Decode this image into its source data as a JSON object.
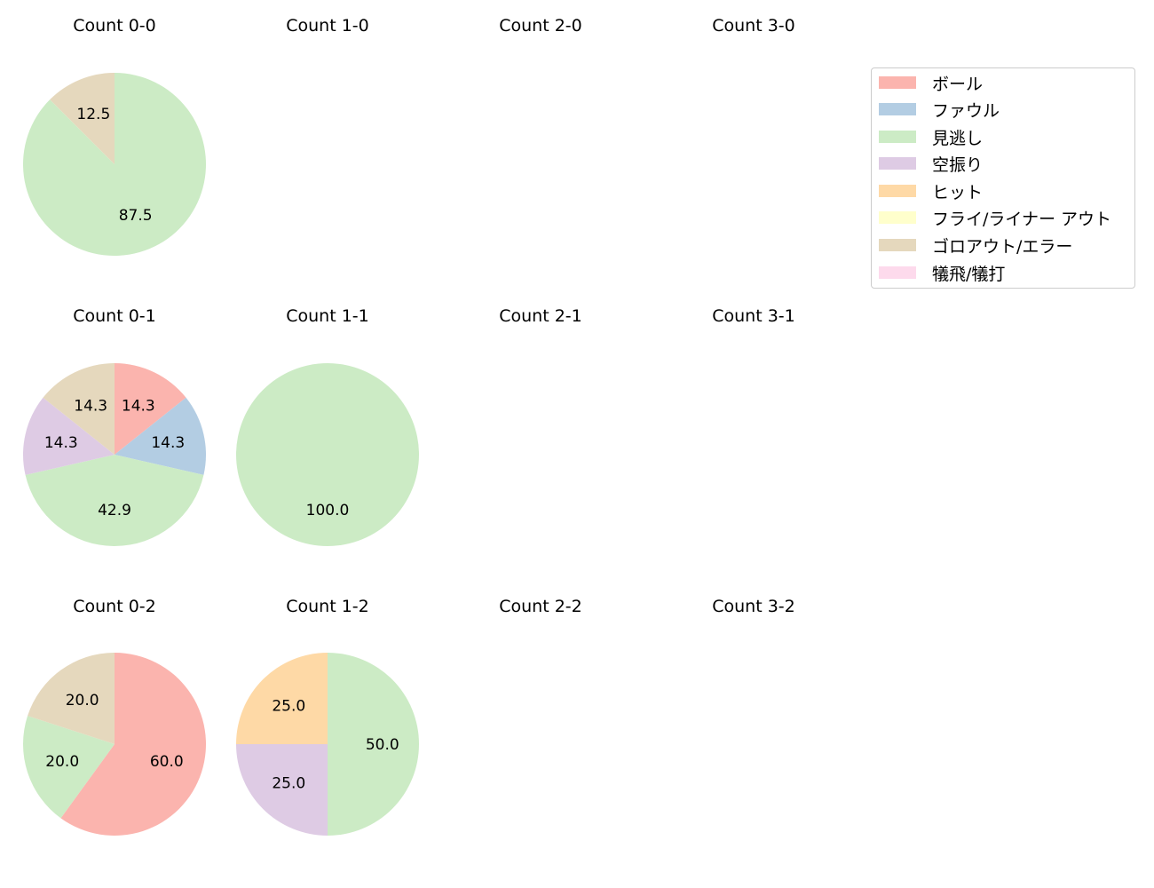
{
  "chart_data": {
    "type": "pie",
    "layout": {
      "rows": 3,
      "cols": 4,
      "start_angle": 90,
      "direction": "clockwise",
      "legend_position": "upper right"
    },
    "categories": [
      "ボール",
      "ファウル",
      "見逃し",
      "空振り",
      "ヒット",
      "フライ/ライナー アウト",
      "ゴロアウト/エラー",
      "犠飛/犠打"
    ],
    "colors": [
      "#fbb4ae",
      "#b3cde3",
      "#ccebc5",
      "#decbe4",
      "#fed9a6",
      "#ffffcc",
      "#e5d8bd",
      "#fddaec"
    ],
    "subplots": [
      {
        "title": "Count 0-0",
        "values": [
          0,
          0,
          87.5,
          0,
          0,
          0,
          12.5,
          0
        ]
      },
      {
        "title": "Count 1-0",
        "values": []
      },
      {
        "title": "Count 2-0",
        "values": []
      },
      {
        "title": "Count 3-0",
        "values": []
      },
      {
        "title": "Count 0-1",
        "values": [
          14.3,
          14.3,
          42.9,
          14.3,
          0,
          0,
          14.3,
          0
        ]
      },
      {
        "title": "Count 1-1",
        "values": [
          0,
          0,
          100.0,
          0,
          0,
          0,
          0,
          0
        ]
      },
      {
        "title": "Count 2-1",
        "values": []
      },
      {
        "title": "Count 3-1",
        "values": []
      },
      {
        "title": "Count 0-2",
        "values": [
          60.0,
          0,
          20.0,
          0,
          0,
          0,
          20.0,
          0
        ]
      },
      {
        "title": "Count 1-2",
        "values": [
          0,
          0,
          50.0,
          25.0,
          25.0,
          0,
          0,
          0
        ]
      },
      {
        "title": "Count 2-2",
        "values": []
      },
      {
        "title": "Count 3-2",
        "values": []
      }
    ]
  },
  "legend": {
    "items": [
      {
        "label": "ボール",
        "color": "#fbb4ae"
      },
      {
        "label": "ファウル",
        "color": "#b3cde3"
      },
      {
        "label": "見逃し",
        "color": "#ccebc5"
      },
      {
        "label": "空振り",
        "color": "#decbe4"
      },
      {
        "label": "ヒット",
        "color": "#fed9a6"
      },
      {
        "label": "フライ/ライナー アウト",
        "color": "#ffffcc"
      },
      {
        "label": "ゴロアウト/エラー",
        "color": "#e5d8bd"
      },
      {
        "label": "犠飛/犠打",
        "color": "#fddaec"
      }
    ]
  }
}
